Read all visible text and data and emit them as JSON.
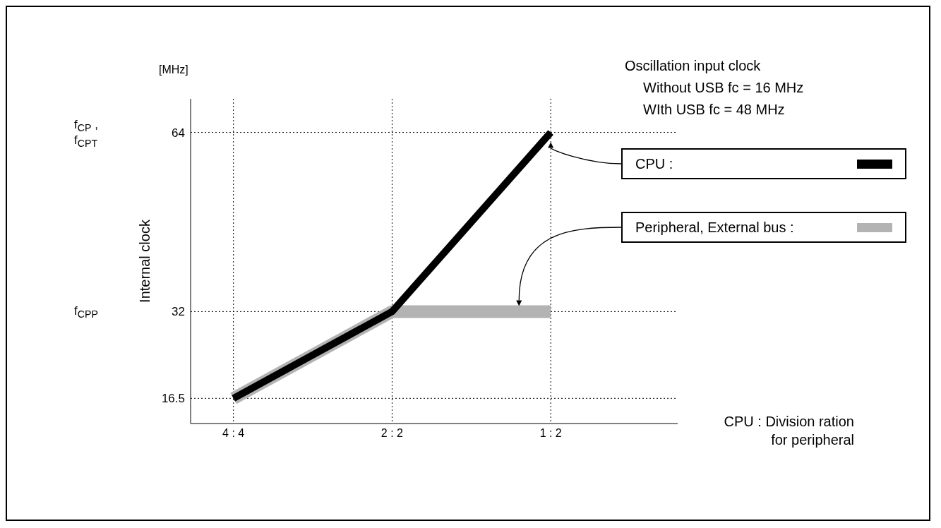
{
  "chart_data": {
    "type": "line",
    "xlabel": "CPU : Division ration for peripheral",
    "ylabel": "Internal clock",
    "categories": [
      "4 : 4",
      "2 : 2",
      "1 : 2"
    ],
    "series": [
      {
        "name": "CPU :",
        "color": "#000000",
        "values": [
          16.5,
          32,
          64
        ]
      },
      {
        "name": "Peripheral, External bus :",
        "color": "#b3b3b3",
        "values": [
          16.5,
          32,
          32
        ]
      }
    ],
    "ylim": [
      12,
      70
    ],
    "yticks": [
      16.5,
      32,
      64
    ],
    "grid": true,
    "legend": "right",
    "marker": "none",
    "line_style": "solid",
    "annotations": [
      "[MHz]",
      "f$_{CP}$ ,",
      "f$_{CPT}$",
      "f$_{CPP}$",
      "Oscillation input clock",
      "Without USB fc = 16 MHz",
      "WIth USB fc = 48 MHz"
    ]
  }
}
